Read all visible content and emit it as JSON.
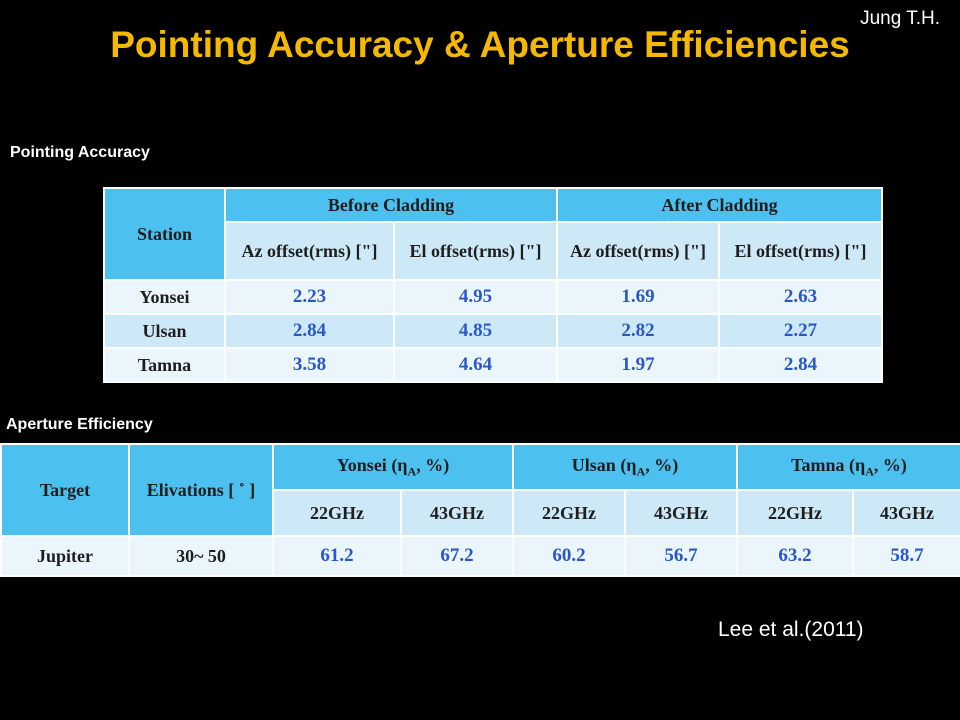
{
  "header": {
    "author": "Jung T.H.",
    "title": "Pointing Accuracy & Aperture Efficiencies"
  },
  "pointing": {
    "label": "Pointing Accuracy",
    "headers": {
      "station": "Station",
      "before": "Before Cladding",
      "after": "After Cladding",
      "az": "Az offset(rms) [\"]",
      "el": "El offset(rms) [\"]"
    },
    "rows": [
      {
        "station": "Yonsei",
        "values": [
          "2.23",
          "4.95",
          "1.69",
          "2.63"
        ]
      },
      {
        "station": "Ulsan",
        "values": [
          "2.84",
          "4.85",
          "2.82",
          "2.27"
        ]
      },
      {
        "station": "Tamna",
        "values": [
          "3.58",
          "4.64",
          "1.97",
          "2.84"
        ]
      }
    ]
  },
  "aperture": {
    "label": "Aperture Efficiency",
    "headers": {
      "target": "Target",
      "elevations": "Elivations [ ˚ ]",
      "groups": [
        {
          "name": "Yonsei",
          "sub": "A"
        },
        {
          "name": "Ulsan",
          "sub": "A"
        },
        {
          "name": "Tamna",
          "sub": "A"
        }
      ],
      "freqs": [
        "22GHz",
        "43GHz",
        "22GHz",
        "43GHz",
        "22GHz",
        "43GHz"
      ]
    },
    "rows": [
      {
        "target": "Jupiter",
        "elevation": "30~ 50",
        "values": [
          "61.2",
          "67.2",
          "60.2",
          "56.7",
          "63.2",
          "58.7"
        ]
      }
    ]
  },
  "citation": "Lee et al.(2011)",
  "colors": {
    "background": "#000000",
    "title": "#f5b800",
    "header_dark": "#4cc0ee",
    "header_light": "#cde9f7",
    "value_text": "#2a57c8"
  }
}
